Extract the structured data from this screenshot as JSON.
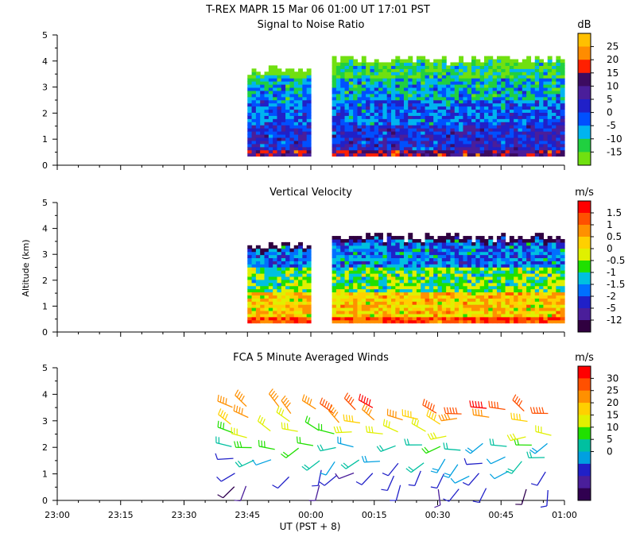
{
  "header": {
    "title": "T-REX   MAPR 15 Mar 06   01:00 UT   17:01   PST"
  },
  "chart_data": [
    {
      "type": "heatmap",
      "title": "Signal to Noise Ratio",
      "xlabel": "",
      "ylabel": "",
      "unit": "dB",
      "ylim": [
        0,
        5
      ],
      "yticks": [
        0,
        1,
        2,
        3,
        4,
        5
      ],
      "xlim_minutes": [
        0,
        120
      ],
      "colorbar_labels": [
        "25",
        "20",
        "15",
        "10",
        "5",
        "0",
        "-5",
        "-10",
        "-15"
      ],
      "colorbar_colors": [
        "#FFC000",
        "#FF8C00",
        "#FF2000",
        "#3C0B60",
        "#4A1E9A",
        "#2020C8",
        "#0050FF",
        "#00B4F0",
        "#20D040",
        "#70E010"
      ],
      "data_segments": [
        {
          "start_minute": 45,
          "end_minute": 60,
          "top_altitude_km": 3.6
        },
        {
          "start_minute": 65,
          "end_minute": 120,
          "top_altitude_km": 4.0
        }
      ],
      "profile": [
        {
          "altitude_km": 0.5,
          "value": 10
        },
        {
          "altitude_km": 1.5,
          "value": 0
        },
        {
          "altitude_km": 2.5,
          "value": -5
        },
        {
          "altitude_km": 3.3,
          "value": -10
        },
        {
          "altitude_km": 3.7,
          "value": -15
        }
      ]
    },
    {
      "type": "heatmap",
      "title": "Vertical Velocity",
      "xlabel": "",
      "ylabel": "Altitude  (km)",
      "unit": "m/s",
      "ylim": [
        0,
        5
      ],
      "yticks": [
        0,
        1,
        2,
        3,
        4,
        5
      ],
      "xlim_minutes": [
        0,
        120
      ],
      "colorbar_labels": [
        "1.5",
        "1",
        "0.5",
        "0",
        "-0.5",
        "-1",
        "-1.5",
        "-2",
        "-5",
        "-12"
      ],
      "colorbar_colors": [
        "#FF0000",
        "#FF5000",
        "#FF9000",
        "#FFD000",
        "#E0F000",
        "#20E000",
        "#00C0E0",
        "#0070FF",
        "#2020C8",
        "#4A1E9A",
        "#300040"
      ],
      "data_segments": [
        {
          "start_minute": 45,
          "end_minute": 60,
          "top_altitude_km": 3.3
        },
        {
          "start_minute": 65,
          "end_minute": 120,
          "top_altitude_km": 3.6
        }
      ],
      "profile": [
        {
          "altitude_km": 0.5,
          "value": 1
        },
        {
          "altitude_km": 1.5,
          "value": 0
        },
        {
          "altitude_km": 2.5,
          "value": -1
        },
        {
          "altitude_km": 3.2,
          "value": -2
        }
      ]
    },
    {
      "type": "scatter",
      "title": "FCA 5 Minute Averaged Winds",
      "xlabel": "UT  (PST + 8)",
      "ylabel": "",
      "unit": "m/s",
      "ylim": [
        0,
        5
      ],
      "yticks": [
        0,
        1,
        2,
        3,
        4,
        5
      ],
      "xlim_minutes": [
        0,
        120
      ],
      "colorbar_labels": [
        "30",
        "25",
        "20",
        "15",
        "10",
        "5",
        "0"
      ],
      "colorbar_colors": [
        "#FF0000",
        "#FF5000",
        "#FF9000",
        "#FFD000",
        "#E0F000",
        "#20E000",
        "#00C0A0",
        "#00A0E0",
        "#2020C8",
        "#4A1E9A",
        "#300050"
      ],
      "wind_times_minutes": [
        41,
        46,
        51,
        56,
        61,
        66,
        71,
        76,
        81,
        86,
        91,
        96,
        101,
        106,
        111,
        116
      ],
      "wind_altitudes_km": [
        0.5,
        1.0,
        1.5,
        2.0,
        2.5,
        3.0,
        3.4
      ],
      "wind_speed_profile_ms": [
        4,
        6,
        9,
        13,
        17,
        22,
        27
      ],
      "wind_direction_profile_deg": [
        200,
        220,
        240,
        260,
        280,
        290,
        300
      ]
    }
  ],
  "x_axis": {
    "tick_labels": [
      "23:00",
      "23:15",
      "23:30",
      "23:45",
      "00:00",
      "00:15",
      "00:30",
      "00:45",
      "01:00"
    ],
    "tick_minutes": [
      0,
      15,
      30,
      45,
      60,
      75,
      90,
      105,
      120
    ]
  }
}
